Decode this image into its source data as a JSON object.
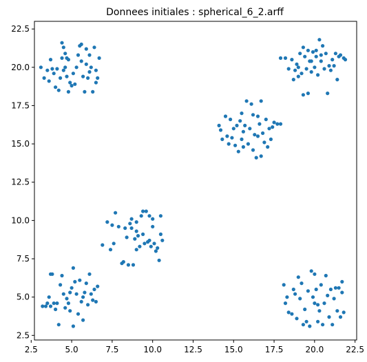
{
  "chart_data": {
    "type": "scatter",
    "title": "Donnees initiales : spherical_6_2.arff",
    "xlabel": "",
    "ylabel": "",
    "xlim": [
      2.7,
      22.6
    ],
    "ylim": [
      2.2,
      23.0
    ],
    "grid": false,
    "colors": {
      "point": "#1f77b4"
    },
    "x_ticks": [
      {
        "value": 2.5,
        "label": "2.5"
      },
      {
        "value": 5.0,
        "label": "5.0"
      },
      {
        "value": 7.5,
        "label": "7.5"
      },
      {
        "value": 10.0,
        "label": "10.0"
      },
      {
        "value": 12.5,
        "label": "12.5"
      },
      {
        "value": 15.0,
        "label": "15.0"
      },
      {
        "value": 17.5,
        "label": "17.5"
      },
      {
        "value": 20.0,
        "label": "20.0"
      },
      {
        "value": 22.5,
        "label": "22.5"
      }
    ],
    "y_ticks": [
      {
        "value": 2.5,
        "label": "2.5"
      },
      {
        "value": 5.0,
        "label": "5.0"
      },
      {
        "value": 7.5,
        "label": "7.5"
      },
      {
        "value": 10.0,
        "label": "10.0"
      },
      {
        "value": 12.5,
        "label": "12.5"
      },
      {
        "value": 15.0,
        "label": "15.0"
      },
      {
        "value": 17.5,
        "label": "17.5"
      },
      {
        "value": 20.0,
        "label": "20.0"
      },
      {
        "value": 22.5,
        "label": "22.5"
      }
    ],
    "points": [
      [
        3.1,
        20.0
      ],
      [
        3.3,
        19.3
      ],
      [
        3.5,
        19.8
      ],
      [
        3.6,
        19.1
      ],
      [
        3.7,
        20.5
      ],
      [
        3.8,
        19.9
      ],
      [
        3.9,
        19.6
      ],
      [
        4.0,
        18.7
      ],
      [
        4.1,
        19.9
      ],
      [
        4.2,
        18.5
      ],
      [
        4.3,
        19.3
      ],
      [
        4.4,
        20.6
      ],
      [
        4.4,
        21.6
      ],
      [
        4.5,
        21.3
      ],
      [
        4.5,
        19.8
      ],
      [
        4.6,
        20.9
      ],
      [
        4.7,
        20.6
      ],
      [
        4.7,
        19.4
      ],
      [
        4.8,
        18.4
      ],
      [
        4.8,
        20.5
      ],
      [
        4.9,
        19.0
      ],
      [
        5.0,
        18.8
      ],
      [
        5.1,
        19.6
      ],
      [
        5.2,
        18.9
      ],
      [
        5.4,
        20.8
      ],
      [
        5.5,
        21.4
      ],
      [
        5.6,
        21.5
      ],
      [
        5.6,
        20.4
      ],
      [
        5.7,
        19.4
      ],
      [
        5.8,
        18.4
      ],
      [
        5.9,
        20.2
      ],
      [
        5.9,
        21.2
      ],
      [
        6.0,
        19.3
      ],
      [
        6.1,
        20.8
      ],
      [
        6.2,
        20.0
      ],
      [
        6.3,
        18.4
      ],
      [
        6.4,
        21.3
      ],
      [
        6.5,
        19.0
      ],
      [
        6.5,
        19.8
      ],
      [
        6.6,
        19.3
      ],
      [
        6.7,
        20.6
      ],
      [
        5.3,
        20.0
      ],
      [
        4.6,
        20.0
      ],
      [
        6.1,
        19.7
      ],
      [
        17.9,
        20.6
      ],
      [
        18.2,
        20.6
      ],
      [
        18.4,
        19.9
      ],
      [
        18.6,
        20.5
      ],
      [
        18.7,
        19.2
      ],
      [
        18.8,
        19.8
      ],
      [
        18.9,
        20.2
      ],
      [
        19.0,
        19.4
      ],
      [
        19.1,
        20.9
      ],
      [
        19.2,
        19.6
      ],
      [
        19.3,
        21.3
      ],
      [
        19.3,
        18.2
      ],
      [
        19.4,
        20.7
      ],
      [
        19.5,
        19.9
      ],
      [
        19.6,
        21.1
      ],
      [
        19.6,
        18.3
      ],
      [
        19.7,
        20.4
      ],
      [
        19.8,
        19.7
      ],
      [
        19.9,
        21.0
      ],
      [
        20.0,
        20.0
      ],
      [
        20.1,
        20.7
      ],
      [
        20.1,
        21.1
      ],
      [
        20.2,
        19.5
      ],
      [
        20.3,
        21.8
      ],
      [
        20.4,
        20.4
      ],
      [
        20.5,
        21.4
      ],
      [
        20.6,
        19.9
      ],
      [
        20.7,
        20.9
      ],
      [
        20.8,
        18.3
      ],
      [
        20.9,
        20.1
      ],
      [
        21.0,
        19.8
      ],
      [
        21.1,
        20.5
      ],
      [
        21.2,
        20.1
      ],
      [
        21.3,
        20.9
      ],
      [
        21.4,
        19.2
      ],
      [
        21.5,
        20.7
      ],
      [
        21.6,
        20.8
      ],
      [
        21.8,
        20.6
      ],
      [
        21.9,
        20.5
      ],
      [
        19.0,
        20.0
      ],
      [
        20.4,
        20.8
      ],
      [
        19.8,
        20.4
      ],
      [
        14.1,
        16.2
      ],
      [
        14.2,
        15.9
      ],
      [
        14.3,
        15.3
      ],
      [
        14.5,
        16.8
      ],
      [
        14.6,
        15.5
      ],
      [
        14.7,
        15.0
      ],
      [
        14.8,
        16.6
      ],
      [
        14.9,
        15.4
      ],
      [
        15.0,
        16.0
      ],
      [
        15.1,
        14.9
      ],
      [
        15.2,
        16.2
      ],
      [
        15.3,
        14.5
      ],
      [
        15.4,
        16.5
      ],
      [
        15.5,
        15.3
      ],
      [
        15.5,
        17.0
      ],
      [
        15.6,
        14.8
      ],
      [
        15.7,
        16.2
      ],
      [
        15.8,
        17.8
      ],
      [
        15.9,
        15.0
      ],
      [
        16.0,
        16.0
      ],
      [
        16.1,
        17.6
      ],
      [
        16.2,
        14.6
      ],
      [
        16.2,
        16.9
      ],
      [
        16.3,
        15.6
      ],
      [
        16.4,
        14.1
      ],
      [
        16.5,
        15.5
      ],
      [
        16.6,
        16.3
      ],
      [
        16.7,
        14.2
      ],
      [
        16.7,
        17.8
      ],
      [
        16.8,
        15.7
      ],
      [
        16.9,
        15.1
      ],
      [
        17.0,
        16.6
      ],
      [
        17.1,
        14.8
      ],
      [
        17.2,
        16.0
      ],
      [
        17.3,
        15.3
      ],
      [
        17.4,
        16.1
      ],
      [
        17.5,
        16.4
      ],
      [
        17.7,
        16.3
      ],
      [
        17.9,
        16.3
      ],
      [
        15.6,
        15.8
      ],
      [
        16.5,
        16.8
      ],
      [
        6.9,
        8.4
      ],
      [
        7.2,
        9.9
      ],
      [
        7.4,
        8.1
      ],
      [
        7.5,
        9.7
      ],
      [
        7.6,
        8.5
      ],
      [
        7.7,
        10.5
      ],
      [
        7.9,
        9.6
      ],
      [
        8.1,
        7.2
      ],
      [
        8.2,
        7.3
      ],
      [
        8.3,
        9.5
      ],
      [
        8.4,
        8.9
      ],
      [
        8.5,
        7.1
      ],
      [
        8.6,
        9.8
      ],
      [
        8.7,
        10.1
      ],
      [
        8.8,
        7.1
      ],
      [
        8.9,
        8.8
      ],
      [
        9.0,
        9.3
      ],
      [
        9.0,
        8.1
      ],
      [
        9.1,
        9.0
      ],
      [
        9.2,
        8.3
      ],
      [
        9.3,
        10.3
      ],
      [
        9.4,
        10.6
      ],
      [
        9.5,
        8.5
      ],
      [
        9.6,
        10.6
      ],
      [
        9.7,
        8.6
      ],
      [
        9.8,
        8.7
      ],
      [
        9.8,
        10.3
      ],
      [
        9.9,
        8.3
      ],
      [
        10.0,
        10.1
      ],
      [
        10.1,
        8.5
      ],
      [
        10.2,
        8.0
      ],
      [
        10.3,
        8.2
      ],
      [
        10.4,
        7.4
      ],
      [
        10.5,
        9.1
      ],
      [
        10.5,
        10.3
      ],
      [
        10.6,
        8.7
      ],
      [
        8.7,
        9.5
      ],
      [
        9.4,
        9.1
      ],
      [
        10.0,
        9.6
      ],
      [
        9.0,
        9.9
      ],
      [
        3.2,
        4.4
      ],
      [
        3.4,
        4.4
      ],
      [
        3.5,
        4.6
      ],
      [
        3.6,
        5.0
      ],
      [
        3.7,
        4.4
      ],
      [
        3.8,
        6.5
      ],
      [
        3.9,
        4.6
      ],
      [
        4.0,
        4.2
      ],
      [
        4.1,
        4.6
      ],
      [
        4.2,
        3.2
      ],
      [
        4.3,
        5.8
      ],
      [
        4.4,
        6.4
      ],
      [
        4.5,
        5.2
      ],
      [
        4.6,
        4.3
      ],
      [
        4.7,
        4.9
      ],
      [
        4.8,
        4.6
      ],
      [
        4.9,
        4.1
      ],
      [
        5.0,
        5.6
      ],
      [
        5.1,
        3.1
      ],
      [
        5.1,
        6.9
      ],
      [
        5.2,
        6.0
      ],
      [
        5.3,
        5.2
      ],
      [
        5.4,
        3.9
      ],
      [
        5.5,
        6.1
      ],
      [
        5.6,
        4.7
      ],
      [
        5.7,
        3.5
      ],
      [
        5.8,
        5.3
      ],
      [
        5.9,
        5.9
      ],
      [
        6.0,
        4.5
      ],
      [
        6.1,
        6.5
      ],
      [
        6.2,
        5.2
      ],
      [
        6.3,
        4.8
      ],
      [
        6.4,
        5.5
      ],
      [
        6.5,
        4.7
      ],
      [
        6.6,
        5.7
      ],
      [
        5.7,
        5.0
      ],
      [
        4.9,
        5.3
      ],
      [
        3.7,
        6.5
      ],
      [
        18.1,
        5.8
      ],
      [
        18.2,
        4.6
      ],
      [
        18.3,
        5.0
      ],
      [
        18.4,
        4.0
      ],
      [
        18.6,
        3.9
      ],
      [
        18.7,
        5.5
      ],
      [
        18.8,
        5.2
      ],
      [
        18.9,
        3.6
      ],
      [
        19.0,
        6.3
      ],
      [
        19.1,
        4.9
      ],
      [
        19.2,
        5.9
      ],
      [
        19.3,
        3.2
      ],
      [
        19.4,
        4.2
      ],
      [
        19.5,
        3.4
      ],
      [
        19.6,
        5.4
      ],
      [
        19.7,
        3.1
      ],
      [
        19.8,
        6.7
      ],
      [
        19.9,
        5.0
      ],
      [
        20.0,
        4.6
      ],
      [
        20.0,
        6.5
      ],
      [
        20.1,
        5.5
      ],
      [
        20.2,
        3.4
      ],
      [
        20.3,
        4.1
      ],
      [
        20.4,
        5.8
      ],
      [
        20.5,
        3.2
      ],
      [
        20.6,
        4.6
      ],
      [
        20.7,
        6.4
      ],
      [
        20.8,
        5.1
      ],
      [
        20.9,
        3.7
      ],
      [
        21.0,
        5.5
      ],
      [
        21.1,
        3.2
      ],
      [
        21.2,
        4.9
      ],
      [
        21.3,
        5.6
      ],
      [
        21.4,
        4.1
      ],
      [
        21.5,
        5.6
      ],
      [
        21.6,
        3.7
      ],
      [
        21.7,
        5.3
      ],
      [
        21.7,
        6.0
      ],
      [
        21.8,
        4.0
      ],
      [
        20.2,
        4.5
      ]
    ]
  }
}
